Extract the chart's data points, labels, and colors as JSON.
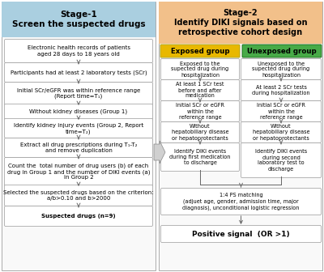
{
  "stage1_title": "Stage-1\nScreen the suspected drugs",
  "stage2_title": "Stage-2\nIdentify DIKI signals based on\nretrospective cohort design",
  "stage1_bg": "#aacfe0",
  "stage2_bg": "#f2c08a",
  "stage1_boxes": [
    "Electronic health records of patients\naged 28 days to 18 years old",
    "Participants had at least 2 laboratory tests (SCr)",
    "Initial SCr/eGFR was within reference range\n(Report time=T₁)",
    "Without kidney diseases (Group 1)",
    "Identify kidney injury events (Group 2, Report\ntime=T₂)",
    "Extract all drug prescriptions during T₁-T₂\nand remove duplication",
    "Count the  total number of drug users (b) of each\ndrug in Group 1 and the number of DIKI events (a)\nin Group 2",
    "Selected the suspected drugs based on the criterion:\na/b>0.10 and b>2000",
    "Suspected drugs (n=9)"
  ],
  "exposed_title": "Exposed group",
  "unexposed_title": "Unexposed group",
  "exposed_bg": "#e8b800",
  "unexposed_bg": "#48aa48",
  "exposed_boxes": [
    "Exposed to the\nsupected drug during\nhospitalization",
    "At least 1 SCr test\nbefore and after\nmedication",
    "Initial SCr or eGFR\nwithin the\nreference range",
    "Without\nhepatobiliary disease\nor hepatoprotectants",
    "Identify DIKI events\nduring first medication\nto discharge"
  ],
  "unexposed_boxes": [
    "Unexposed to the\nsupected drug during\nhospitalization",
    "At least 2 SCr tests\nduring hospitalization",
    "Initial SCr or eGFR\nwithin the\nreference range",
    "Without\nhepatobiliary disease\nor hepatoprotectants",
    "Identify DIKI events\nduring second\nlaboratory test to\ndischarge"
  ],
  "matching_box": "1:4 PS matching\n(adjuet age, gender, admission time, major\ndiagnosis), unconditional logistic regression",
  "positive_signal": "Positive signal  (OR >1)",
  "box_bg": "#ffffff",
  "box_border": "#999999",
  "arrow_color": "#666666",
  "panel_border": "#aaaaaa",
  "panel_bg": "#f9f9f9"
}
